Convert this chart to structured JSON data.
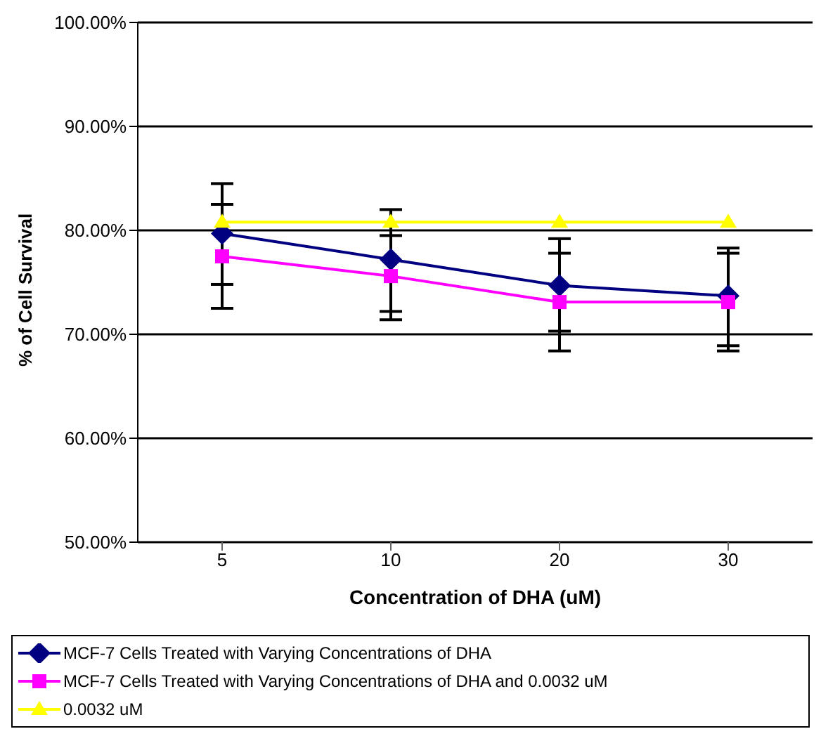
{
  "chart_data": {
    "type": "line",
    "xlabel": "Concentration of DHA (uM)",
    "ylabel": "% of Cell Survival",
    "categories": [
      "5",
      "10",
      "20",
      "30"
    ],
    "series": [
      {
        "name": "MCF-7 Cells Treated with Varying Concentrations of DHA",
        "color": "#000080",
        "marker": "diamond",
        "values": [
          79.7,
          77.2,
          74.7,
          73.7
        ],
        "errors": [
          [
            72.5,
            84.5
          ],
          [
            72.2,
            82.0
          ],
          [
            70.3,
            79.2
          ],
          [
            68.9,
            78.3
          ]
        ]
      },
      {
        "name": "MCF-7 Cells Treated with Varying Concentrations of DHA and 0.0032 uM",
        "color": "#ff00ff",
        "marker": "square",
        "values": [
          77.5,
          75.6,
          73.1,
          73.1
        ],
        "errors": [
          [
            74.8,
            82.5
          ],
          [
            71.4,
            79.5
          ],
          [
            68.4,
            77.8
          ],
          [
            68.4,
            77.8
          ]
        ]
      },
      {
        "name": "0.0032 uM",
        "color": "#ffff00",
        "marker": "triangle",
        "values": [
          80.8,
          80.8,
          80.8,
          80.8
        ]
      }
    ],
    "ylim": [
      50,
      100
    ],
    "yticks": [
      {
        "value": 50,
        "label": "50.00%"
      },
      {
        "value": 60,
        "label": "60.00%"
      },
      {
        "value": 70,
        "label": "70.00%"
      },
      {
        "value": 80,
        "label": "80.00%"
      },
      {
        "value": 90,
        "label": "90.00%"
      },
      {
        "value": 100,
        "label": "100.00%"
      }
    ],
    "grid": "y",
    "legend": "bottom"
  }
}
